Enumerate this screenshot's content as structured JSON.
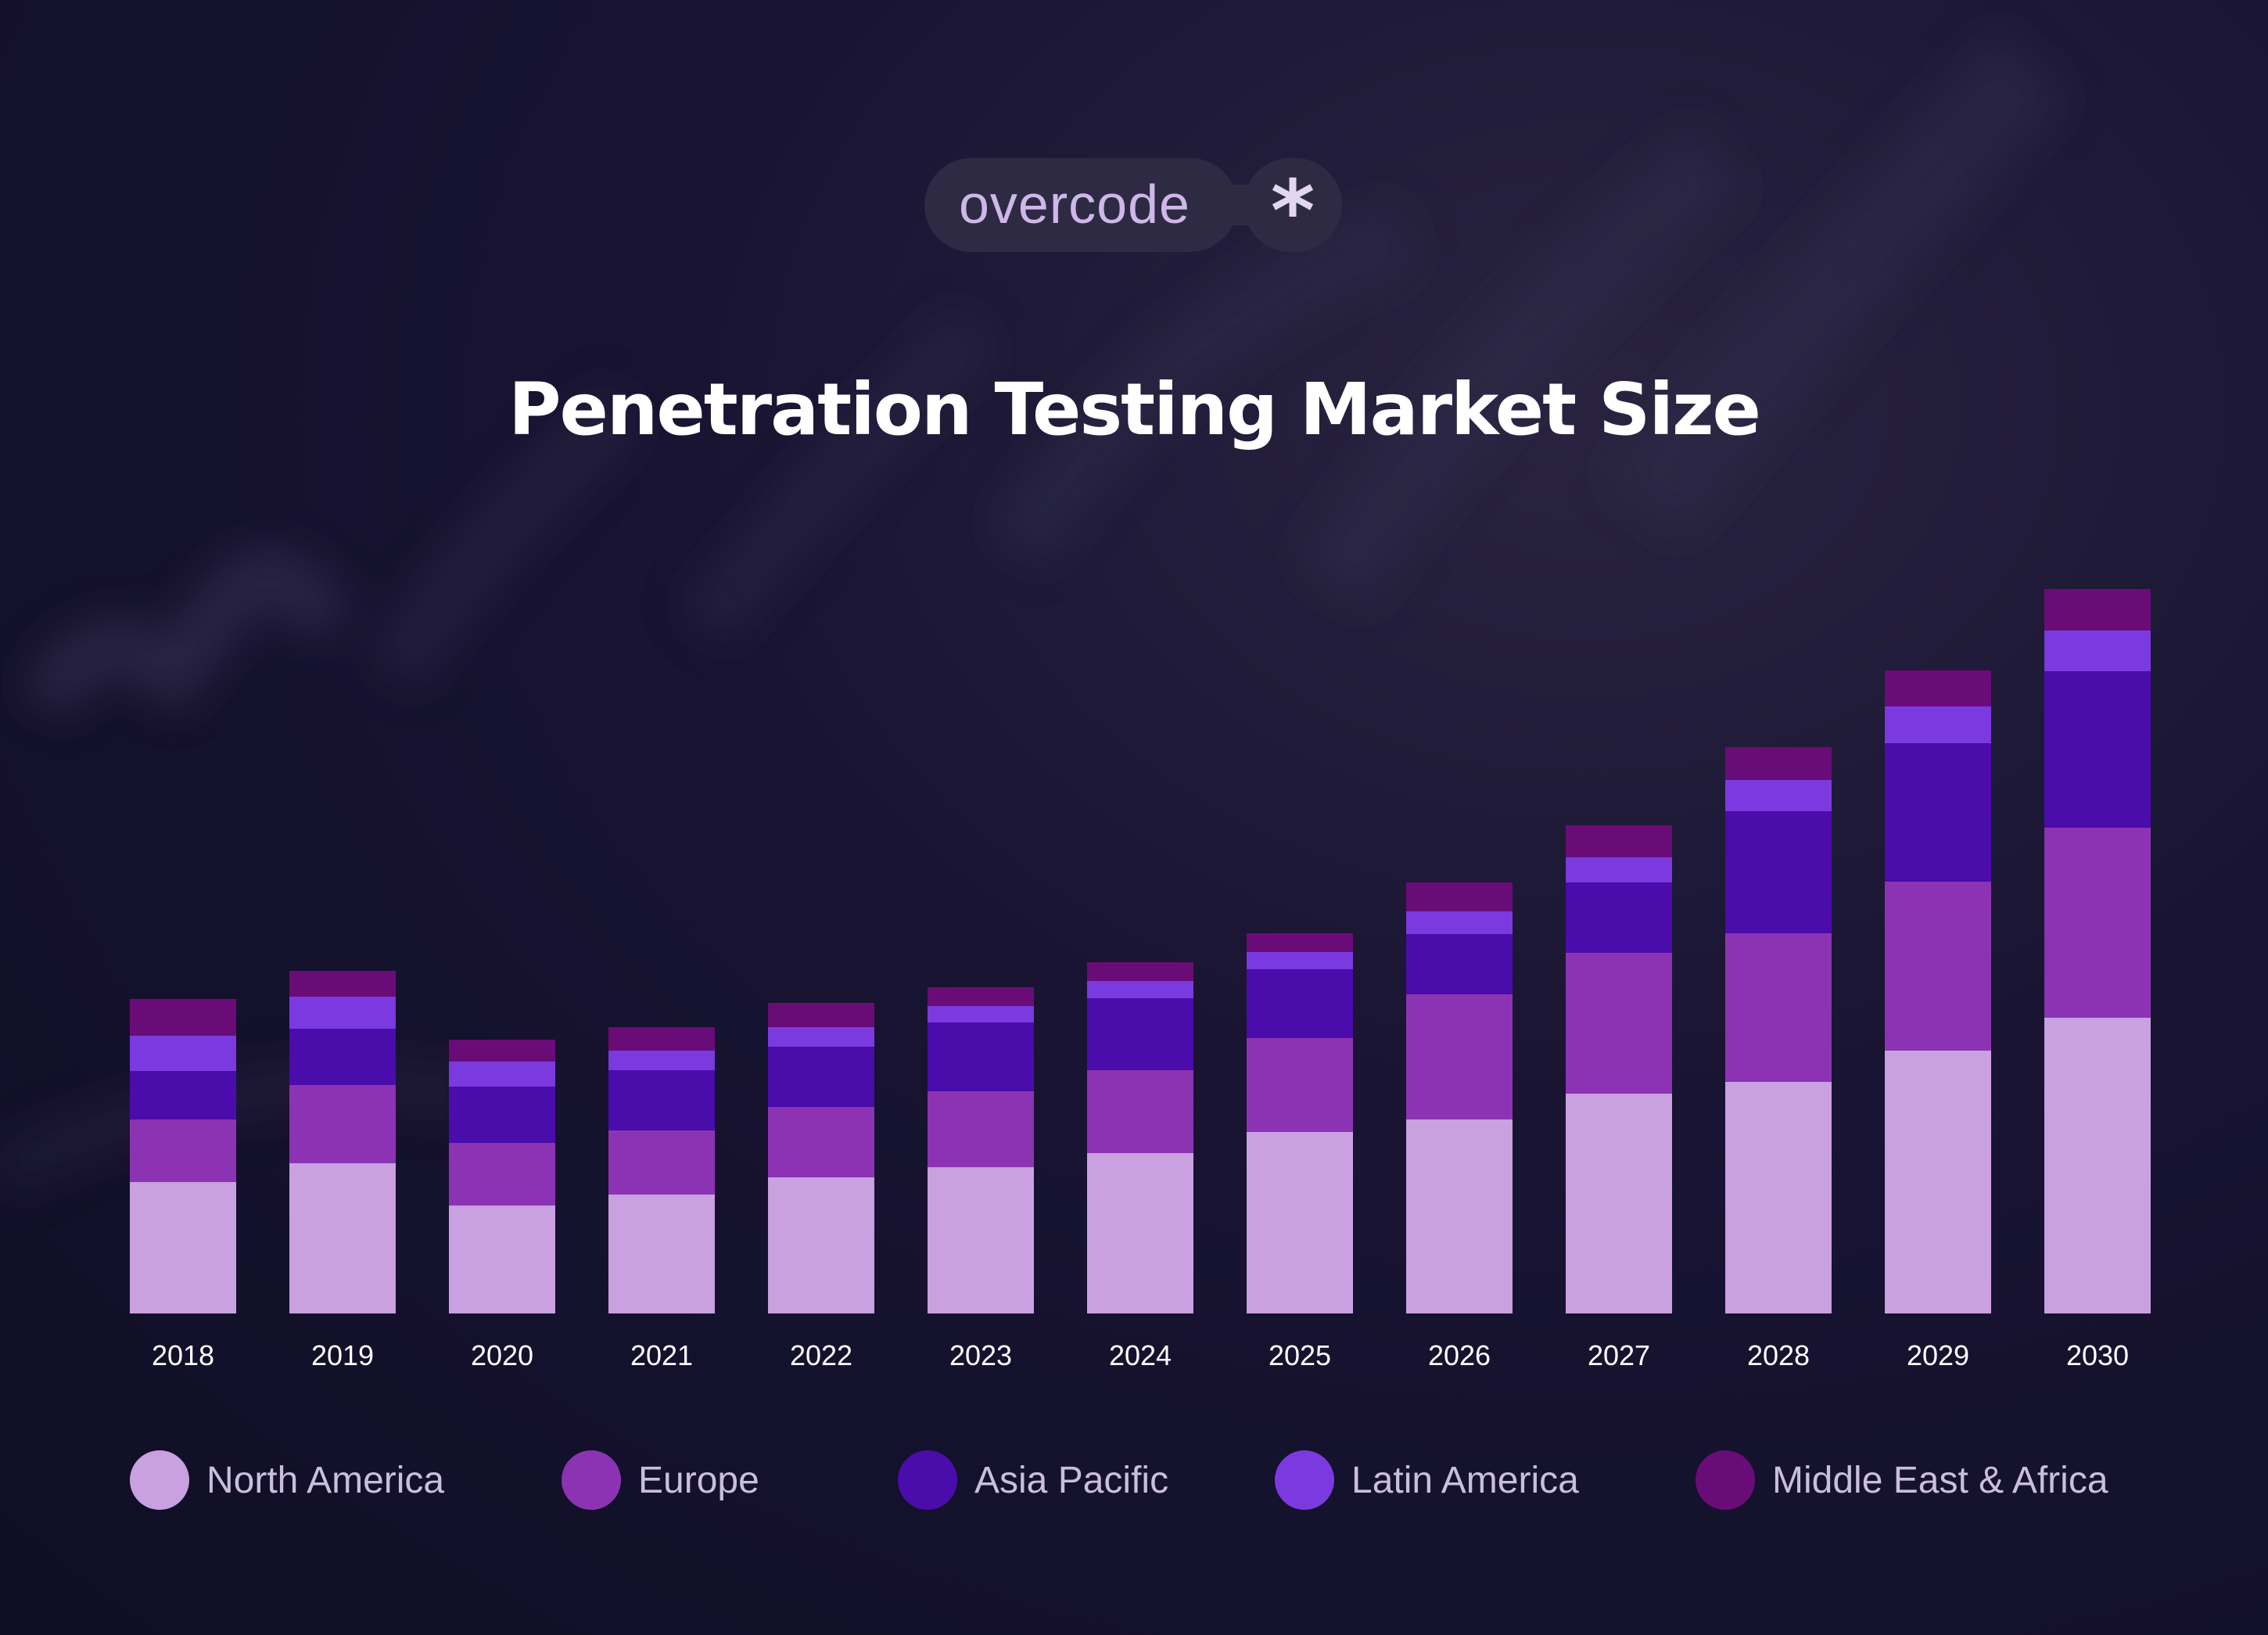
{
  "brand": {
    "name": "overcode",
    "mark": "*"
  },
  "chart_data": {
    "type": "bar",
    "stacked": true,
    "title": "Penetration Testing Market Size",
    "xlabel": "",
    "ylabel": "",
    "grid": false,
    "legend_position": "bottom",
    "categories": [
      "2018",
      "2019",
      "2020",
      "2021",
      "2022",
      "2023",
      "2024",
      "2025",
      "2026",
      "2027",
      "2028",
      "2029",
      "2030"
    ],
    "series": [
      {
        "name": "North America",
        "color": "#c9a0e0",
        "values": [
          168,
          192,
          138,
          152,
          174,
          187,
          205,
          232,
          248,
          281,
          296,
          336,
          378
        ]
      },
      {
        "name": "Europe",
        "color": "#8c33b4",
        "values": [
          80,
          100,
          80,
          82,
          90,
          97,
          106,
          120,
          160,
          180,
          190,
          216,
          243
        ]
      },
      {
        "name": "Asia Pacific",
        "color": "#4a0caa",
        "values": [
          62,
          72,
          72,
          77,
          77,
          88,
          92,
          88,
          77,
          90,
          156,
          177,
          200
        ]
      },
      {
        "name": "Latin America",
        "color": "#7a3ae0",
        "values": [
          45,
          41,
          32,
          25,
          25,
          21,
          22,
          22,
          29,
          32,
          40,
          47,
          52
        ]
      },
      {
        "name": "Middle East & Africa",
        "color": "#6a0c78",
        "values": [
          47,
          33,
          28,
          30,
          31,
          24,
          24,
          24,
          37,
          41,
          42,
          46,
          53
        ]
      }
    ]
  }
}
